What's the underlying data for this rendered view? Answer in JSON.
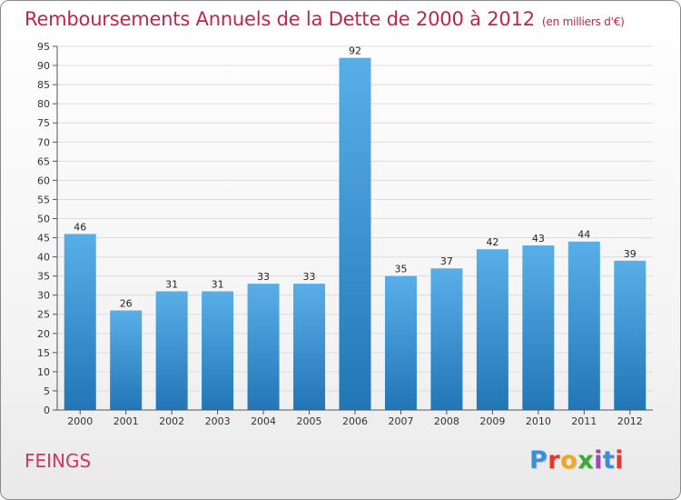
{
  "header": {
    "title": "Remboursements Annuels de la Dette de 2000 à 2012",
    "subtitle": "(en milliers d'€)"
  },
  "footer": {
    "commune": "FEINGS",
    "logo": "Proxiti",
    "logo_colors": [
      "#3a8fd6",
      "#e8362b",
      "#f2a81d",
      "#3aa935",
      "#9b4bb0",
      "#3a8fd6",
      "#e8362b"
    ]
  },
  "colors": {
    "bar_top": "#5aaee8",
    "bar_bottom": "#2276b6",
    "grid": "#dddddd",
    "axis": "#555555",
    "title": "#c0254a"
  },
  "chart_data": {
    "type": "bar",
    "title": "Remboursements Annuels de la Dette de 2000 à 2012",
    "subtitle": "(en milliers d'€)",
    "categories": [
      "2000",
      "2001",
      "2002",
      "2003",
      "2004",
      "2005",
      "2006",
      "2007",
      "2008",
      "2009",
      "2010",
      "2011",
      "2012"
    ],
    "values": [
      46,
      26,
      31,
      31,
      33,
      33,
      92,
      35,
      37,
      42,
      43,
      44,
      39
    ],
    "ylim": [
      0,
      95
    ],
    "yticks": [
      0,
      5,
      10,
      15,
      20,
      25,
      30,
      35,
      40,
      45,
      50,
      55,
      60,
      65,
      70,
      75,
      80,
      85,
      90,
      95
    ],
    "grid": true,
    "xlabel": "",
    "ylabel": ""
  }
}
